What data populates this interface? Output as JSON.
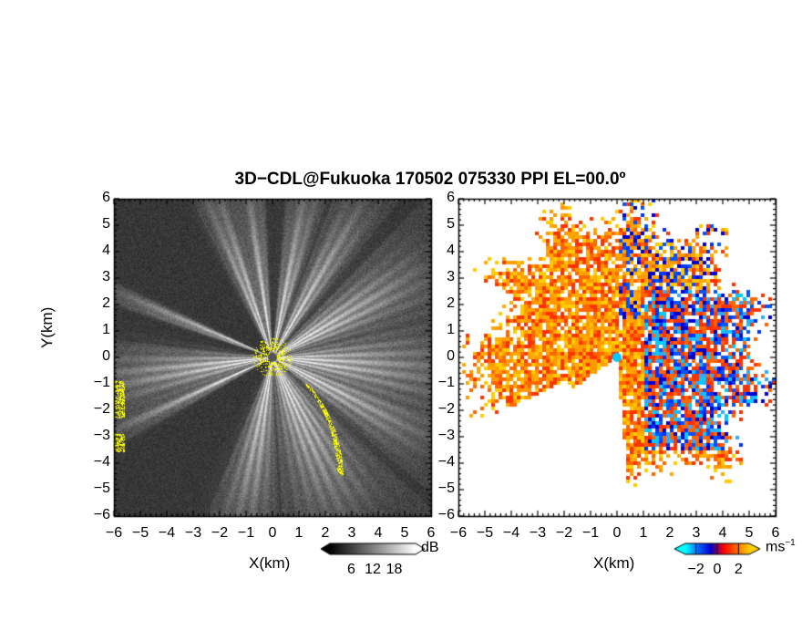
{
  "title": "3D−CDL@Fukuoka 170502 075330 PPI EL=00.0º",
  "chart_data": [
    {
      "type": "heatmap",
      "panel": "left",
      "quantity": "SNR",
      "xlabel": "X(km)",
      "ylabel": "Y(km)",
      "xlim": [
        -6,
        6
      ],
      "ylim": [
        -6,
        6
      ],
      "xticks": [
        "−6",
        "−5",
        "−4",
        "−3",
        "−2",
        "−1",
        "0",
        "1",
        "2",
        "3",
        "4",
        "5",
        "6"
      ],
      "yticks": [
        "6",
        "5",
        "4",
        "3",
        "2",
        "1",
        "0",
        "−1",
        "−2",
        "−3",
        "−4",
        "−5",
        "−6"
      ],
      "colorbar": {
        "unit": "dB",
        "ticks": [
          "6",
          "12",
          "18"
        ],
        "tick_values": [
          6,
          12,
          18
        ],
        "range": [
          0,
          24
        ],
        "colors": [
          "#000000",
          "#ffffff"
        ]
      },
      "highlight_color": "#ffff00",
      "background_color": "#2a2a2a",
      "strong_sectors_deg": [
        {
          "az": 95,
          "w": 22
        },
        {
          "az": 60,
          "w": 18
        },
        {
          "az": 30,
          "w": 10
        },
        {
          "az": 12,
          "w": 8
        },
        {
          "az": -20,
          "w": 8
        },
        {
          "az": -8,
          "w": 6
        },
        {
          "az": 118,
          "w": 14
        },
        {
          "az": 155,
          "w": 24
        },
        {
          "az": 190,
          "w": 14
        },
        {
          "az": 245,
          "w": 5
        },
        {
          "az": 262,
          "w": 16
        },
        {
          "az": 292,
          "w": 4
        }
      ]
    },
    {
      "type": "heatmap",
      "panel": "right",
      "quantity": "Doppler velocity",
      "xlabel": "X(km)",
      "xlim": [
        -6,
        6
      ],
      "ylim": [
        -6,
        6
      ],
      "xticks": [
        "−6",
        "−5",
        "−4",
        "−3",
        "−2",
        "−1",
        "0",
        "1",
        "2",
        "3",
        "4",
        "5",
        "6"
      ],
      "yticks": [
        "6",
        "5",
        "4",
        "3",
        "2",
        "1",
        "0",
        "−1",
        "−2",
        "−3",
        "−4",
        "−5",
        "−6"
      ],
      "colorbar": {
        "unit": "ms",
        "unit_superscript": "−1",
        "ticks": [
          "−2",
          "0",
          "2"
        ],
        "tick_values": [
          -2,
          0,
          2
        ],
        "range": [
          -3,
          3
        ],
        "colors": [
          "#00ffff",
          "#0066ff",
          "#0000cc",
          "#ff0000",
          "#ff6600",
          "#ffcc00"
        ]
      },
      "positive_colors": [
        "#ff3300",
        "#ff6600",
        "#ff9900",
        "#ffcc00",
        "#ffaa00"
      ],
      "negative_colors": [
        "#0033ff",
        "#0055ff",
        "#0000cc",
        "#33aaff",
        "#00ccff"
      ],
      "center_color": "#00c8ff"
    }
  ]
}
